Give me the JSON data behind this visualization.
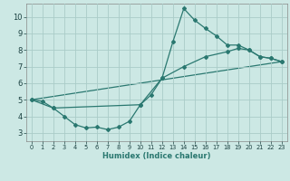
{
  "xlabel": "Humidex (Indice chaleur)",
  "ylabel": "",
  "background_color": "#cce8e4",
  "grid_color": "#aaccc8",
  "line_color": "#2a7870",
  "xlim": [
    -0.5,
    23.5
  ],
  "ylim": [
    2.5,
    10.8
  ],
  "xticks": [
    0,
    1,
    2,
    3,
    4,
    5,
    6,
    7,
    8,
    9,
    10,
    11,
    12,
    13,
    14,
    15,
    16,
    17,
    18,
    19,
    20,
    21,
    22,
    23
  ],
  "yticks": [
    3,
    4,
    5,
    6,
    7,
    8,
    9,
    10
  ],
  "series1_x": [
    0,
    1,
    2,
    3,
    4,
    5,
    6,
    7,
    8,
    9,
    10,
    11,
    12,
    13,
    14,
    15,
    16,
    17,
    18,
    19,
    20,
    21,
    22,
    23
  ],
  "series1_y": [
    5.0,
    4.9,
    4.5,
    4.0,
    3.5,
    3.3,
    3.35,
    3.2,
    3.35,
    3.7,
    4.7,
    5.3,
    6.3,
    8.5,
    10.5,
    9.8,
    9.3,
    8.85,
    8.3,
    8.3,
    8.0,
    7.6,
    7.5,
    7.3
  ],
  "series2_x": [
    0,
    2,
    10,
    12,
    14,
    16,
    18,
    19,
    20,
    21,
    22,
    23
  ],
  "series2_y": [
    5.0,
    4.5,
    4.7,
    6.3,
    7.0,
    7.6,
    7.9,
    8.1,
    8.0,
    7.6,
    7.5,
    7.3
  ],
  "series3_x": [
    0,
    23
  ],
  "series3_y": [
    5.0,
    7.3
  ]
}
